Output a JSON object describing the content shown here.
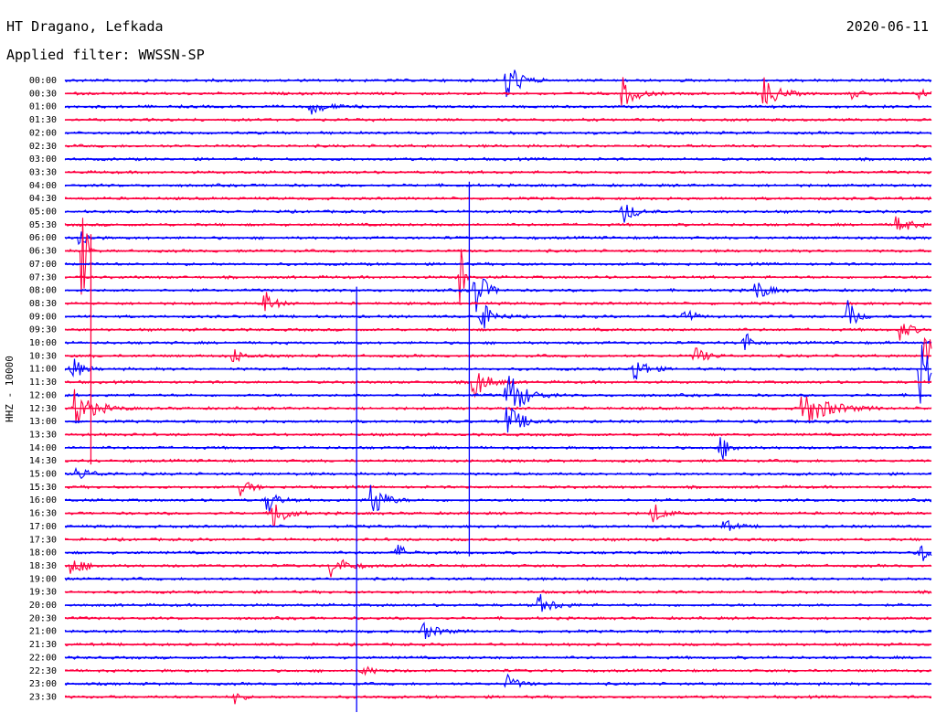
{
  "header": {
    "station": "HT Dragano, Lefkada",
    "date": "2020-06-11",
    "filter": "Applied filter: WWSSN-SP"
  },
  "channel_label": "HHZ - 10000",
  "colors": {
    "trace_a": "#0000ff",
    "trace_b": "#ff0040",
    "text": "#000000"
  },
  "chart_data": {
    "type": "line",
    "title": "HT Dragano, Lefkada",
    "subtitle": "Applied filter: WWSSN-SP",
    "ylabel": "HHZ - 10000",
    "y_tick_labels": [
      "00:00",
      "00:30",
      "01:00",
      "01:30",
      "02:00",
      "02:30",
      "03:00",
      "03:30",
      "04:00",
      "04:30",
      "05:00",
      "05:30",
      "06:00",
      "06:30",
      "07:00",
      "07:30",
      "08:00",
      "08:30",
      "09:00",
      "09:30",
      "10:00",
      "10:30",
      "11:00",
      "11:30",
      "12:00",
      "12:30",
      "13:00",
      "13:30",
      "14:00",
      "14:30",
      "15:00",
      "15:30",
      "16:00",
      "16:30",
      "17:00",
      "17:30",
      "18:00",
      "18:30",
      "19:00",
      "19:30",
      "20:00",
      "20:30",
      "21:00",
      "21:30",
      "22:00",
      "22:30",
      "23:00",
      "23:30"
    ],
    "minutes_per_line": 30,
    "grid": false,
    "events": [
      {
        "line": 0,
        "minute": 15.3,
        "amp": 30,
        "dur": 0.6
      },
      {
        "line": 1,
        "minute": 19.3,
        "amp": 18,
        "dur": 0.7
      },
      {
        "line": 1,
        "minute": 24.2,
        "amp": 20,
        "dur": 0.7
      },
      {
        "line": 1,
        "minute": 27.2,
        "amp": 6,
        "dur": 0.5
      },
      {
        "line": 1,
        "minute": 29.6,
        "amp": 8,
        "dur": 0.4
      },
      {
        "line": 2,
        "minute": 8.5,
        "amp": 8,
        "dur": 0.9
      },
      {
        "line": 10,
        "minute": 19.3,
        "amp": 15,
        "dur": 0.6
      },
      {
        "line": 11,
        "minute": 28.8,
        "amp": 14,
        "dur": 0.6
      },
      {
        "line": 12,
        "minute": 0.5,
        "amp": 14,
        "dur": 0.4
      },
      {
        "line": 13,
        "minute": 0.6,
        "amp": 80,
        "dur": 0.2
      },
      {
        "line": 15,
        "minute": 13.7,
        "amp": 60,
        "dur": 0.15
      },
      {
        "line": 16,
        "minute": 14.2,
        "amp": 35,
        "dur": 0.5
      },
      {
        "line": 16,
        "minute": 23.9,
        "amp": 14,
        "dur": 0.6
      },
      {
        "line": 17,
        "minute": 6.9,
        "amp": 16,
        "dur": 0.5
      },
      {
        "line": 18,
        "minute": 14.4,
        "amp": 18,
        "dur": 0.6
      },
      {
        "line": 18,
        "minute": 21.4,
        "amp": 12,
        "dur": 0.5
      },
      {
        "line": 18,
        "minute": 27.1,
        "amp": 22,
        "dur": 0.4
      },
      {
        "line": 19,
        "minute": 28.9,
        "amp": 12,
        "dur": 0.6
      },
      {
        "line": 20,
        "minute": 23.5,
        "amp": 20,
        "dur": 0.3
      },
      {
        "line": 21,
        "minute": 5.8,
        "amp": 10,
        "dur": 0.5
      },
      {
        "line": 21,
        "minute": 21.8,
        "amp": 12,
        "dur": 0.6
      },
      {
        "line": 21,
        "minute": 29.8,
        "amp": 40,
        "dur": 0.5
      },
      {
        "line": 22,
        "minute": 0.2,
        "amp": 18,
        "dur": 0.5
      },
      {
        "line": 22,
        "minute": 19.7,
        "amp": 18,
        "dur": 0.6
      },
      {
        "line": 22,
        "minute": 29.6,
        "amp": 40,
        "dur": 0.8
      },
      {
        "line": 23,
        "minute": 14.1,
        "amp": 22,
        "dur": 0.7
      },
      {
        "line": 24,
        "minute": 15.3,
        "amp": 35,
        "dur": 0.8
      },
      {
        "line": 25,
        "minute": 0.3,
        "amp": 22,
        "dur": 1.0
      },
      {
        "line": 25,
        "minute": 25.5,
        "amp": 22,
        "dur": 1.4
      },
      {
        "line": 26,
        "minute": 15.3,
        "amp": 20,
        "dur": 0.8
      },
      {
        "line": 28,
        "minute": 22.7,
        "amp": 16,
        "dur": 0.5
      },
      {
        "line": 30,
        "minute": 0.4,
        "amp": 8,
        "dur": 0.8
      },
      {
        "line": 31,
        "minute": 6.1,
        "amp": 12,
        "dur": 0.5
      },
      {
        "line": 32,
        "minute": 7.0,
        "amp": 16,
        "dur": 0.5
      },
      {
        "line": 32,
        "minute": 10.6,
        "amp": 28,
        "dur": 0.6
      },
      {
        "line": 33,
        "minute": 7.2,
        "amp": 22,
        "dur": 0.6
      },
      {
        "line": 33,
        "minute": 20.3,
        "amp": 14,
        "dur": 0.6
      },
      {
        "line": 34,
        "minute": 22.8,
        "amp": 8,
        "dur": 0.6
      },
      {
        "line": 36,
        "minute": 11.5,
        "amp": 10,
        "dur": 0.5
      },
      {
        "line": 36,
        "minute": 29.6,
        "amp": 14,
        "dur": 0.6
      },
      {
        "line": 37,
        "minute": 0.2,
        "amp": 10,
        "dur": 0.8
      },
      {
        "line": 37,
        "minute": 9.2,
        "amp": 14,
        "dur": 0.8
      },
      {
        "line": 40,
        "minute": 16.4,
        "amp": 12,
        "dur": 0.8
      },
      {
        "line": 42,
        "minute": 12.4,
        "amp": 10,
        "dur": 0.8
      },
      {
        "line": 45,
        "minute": 10.3,
        "amp": 6,
        "dur": 0.6
      },
      {
        "line": 46,
        "minute": 15.3,
        "amp": 10,
        "dur": 0.6
      },
      {
        "line": 47,
        "minute": 5.9,
        "amp": 10,
        "dur": 0.3
      }
    ],
    "spikes": [
      {
        "start_line": 12,
        "end_line": 29,
        "minute": 0.9,
        "color": "trace_b"
      },
      {
        "start_line": 8,
        "end_line": 36,
        "minute": 14.0,
        "color": "trace_a"
      },
      {
        "start_line": 16,
        "end_line": 48,
        "minute": 10.1,
        "color": "trace_a"
      }
    ]
  }
}
